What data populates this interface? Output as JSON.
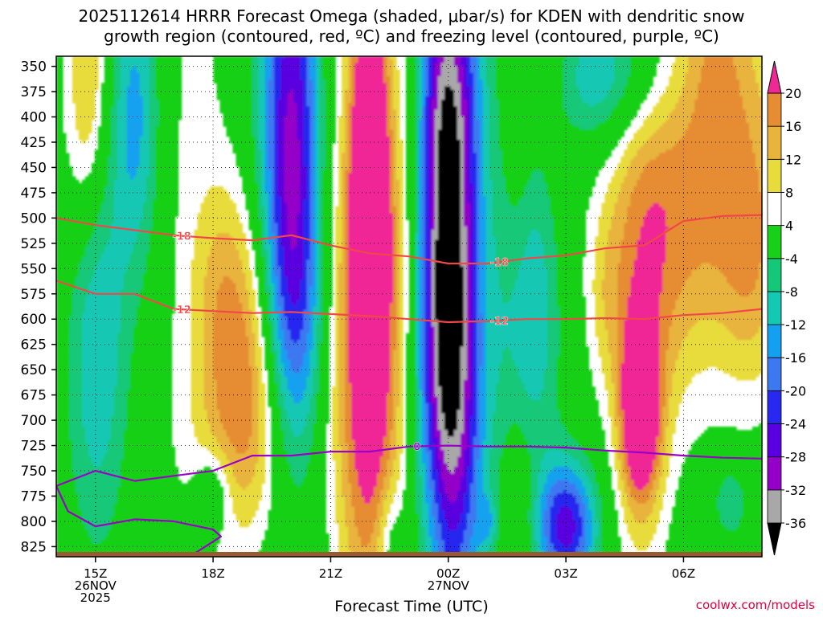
{
  "title_line1": "2025112614 HRRR Forecast Omega (shaded, μbar/s) for KDEN with dendritic snow",
  "title_line2": "growth region (contoured, red, ºC) and freezing level (contoured, purple, ºC)",
  "credit": "coolwx.com/models",
  "chart_data": {
    "type": "heatmap",
    "xlabel": "Forecast Time (UTC)",
    "x_range_hours_utc": [
      14,
      32
    ],
    "y_range_hpa": [
      340,
      835
    ],
    "y_axis": "pressure (hPa), inverted",
    "y_ticks": [
      350,
      375,
      400,
      425,
      450,
      475,
      500,
      525,
      550,
      575,
      600,
      625,
      650,
      675,
      700,
      725,
      750,
      775,
      800,
      825
    ],
    "x_ticks": [
      {
        "hour": 15,
        "lines": [
          "15Z",
          "26NOV",
          "2025"
        ]
      },
      {
        "hour": 18,
        "lines": [
          "18Z"
        ]
      },
      {
        "hour": 21,
        "lines": [
          "21Z"
        ]
      },
      {
        "hour": 24,
        "lines": [
          "00Z",
          "27NOV"
        ]
      },
      {
        "hour": 27,
        "lines": [
          "03Z"
        ]
      },
      {
        "hour": 30,
        "lines": [
          "06Z"
        ]
      }
    ],
    "grid": "dotted",
    "colorbar": {
      "levels": [
        -36,
        -32,
        -28,
        -24,
        -20,
        -16,
        -12,
        -8,
        -4,
        4,
        8,
        12,
        16,
        20
      ],
      "colors": [
        "#000000",
        "#a8a8a8",
        "#9400c8",
        "#5a00e0",
        "#2828f0",
        "#3c78f0",
        "#14a0f0",
        "#14c8b4",
        "#14c878",
        "#18d018",
        "#ffffff",
        "#e8dc3c",
        "#e8b43c",
        "#e68c32",
        "#f05050",
        "#f02896"
      ]
    },
    "omega_features": [
      {
        "center_hour": 24.0,
        "center_hpa": 545,
        "peak": -38,
        "note": "strong ascent column"
      },
      {
        "center_hour": 20.0,
        "center_hpa": 440,
        "peak": -28
      },
      {
        "center_hour": 15.0,
        "center_hpa": 615,
        "peak": -14
      },
      {
        "center_hour": 16.0,
        "center_hpa": 395,
        "peak": -14
      },
      {
        "center_hour": 26.0,
        "center_hpa": 595,
        "peak": -12
      },
      {
        "center_hour": 28.0,
        "center_hpa": 365,
        "peak": -12
      },
      {
        "center_hour": 27.0,
        "center_hpa": 805,
        "peak": -24
      },
      {
        "center_hour": 22.0,
        "center_hpa": 640,
        "peak": 22,
        "note": "strong descent"
      },
      {
        "center_hour": 22.0,
        "center_hpa": 395,
        "peak": 22
      },
      {
        "center_hour": 28.9,
        "center_hpa": 695,
        "peak": 22
      },
      {
        "center_hour": 29.3,
        "center_hpa": 510,
        "peak": 14
      },
      {
        "center_hour": 18.8,
        "center_hpa": 640,
        "peak": 14
      },
      {
        "center_hour": 30.8,
        "center_hpa": 430,
        "peak": 14
      }
    ],
    "contours": [
      {
        "color": "#f04848",
        "label": "-18",
        "points": [
          [
            14,
            500
          ],
          [
            15,
            507
          ],
          [
            16,
            512
          ],
          [
            17,
            517
          ],
          [
            18,
            520
          ],
          [
            19,
            522
          ],
          [
            20,
            517
          ],
          [
            21,
            527
          ],
          [
            22,
            535
          ],
          [
            23,
            538
          ],
          [
            24,
            545
          ],
          [
            25,
            545
          ],
          [
            26,
            540
          ],
          [
            27,
            537
          ],
          [
            28,
            530
          ],
          [
            29,
            527
          ],
          [
            30,
            503
          ],
          [
            31,
            498
          ],
          [
            32,
            497
          ]
        ]
      },
      {
        "color": "#f04848",
        "label": "-12",
        "points": [
          [
            14,
            562
          ],
          [
            15,
            575
          ],
          [
            16,
            575
          ],
          [
            17,
            590
          ],
          [
            18,
            592
          ],
          [
            19,
            594
          ],
          [
            20,
            593
          ],
          [
            21,
            595
          ],
          [
            22,
            597
          ],
          [
            23,
            600
          ],
          [
            24,
            603
          ],
          [
            25,
            602
          ],
          [
            26,
            600
          ],
          [
            27,
            600
          ],
          [
            28,
            599
          ],
          [
            29,
            600
          ],
          [
            30,
            596
          ],
          [
            31,
            594
          ],
          [
            32,
            590
          ]
        ]
      },
      {
        "color": "#9a00c8",
        "label": "0",
        "points": [
          [
            14,
            765
          ],
          [
            15,
            750
          ],
          [
            16,
            760
          ],
          [
            17,
            755
          ],
          [
            18,
            750
          ],
          [
            19,
            735
          ],
          [
            20,
            735
          ],
          [
            21,
            731
          ],
          [
            22,
            731
          ],
          [
            23,
            726
          ],
          [
            24,
            725
          ],
          [
            25,
            726
          ],
          [
            26,
            726
          ],
          [
            27,
            727
          ],
          [
            28,
            730
          ],
          [
            29,
            732
          ],
          [
            30,
            735
          ],
          [
            31,
            737
          ],
          [
            32,
            738
          ]
        ]
      },
      {
        "color": "#9a00c8",
        "label": "",
        "points": [
          [
            14,
            765
          ],
          [
            14.3,
            790
          ],
          [
            15,
            805
          ],
          [
            16,
            798
          ],
          [
            17,
            800
          ],
          [
            18,
            808
          ],
          [
            18.2,
            815
          ],
          [
            17.4,
            835
          ]
        ]
      }
    ]
  }
}
